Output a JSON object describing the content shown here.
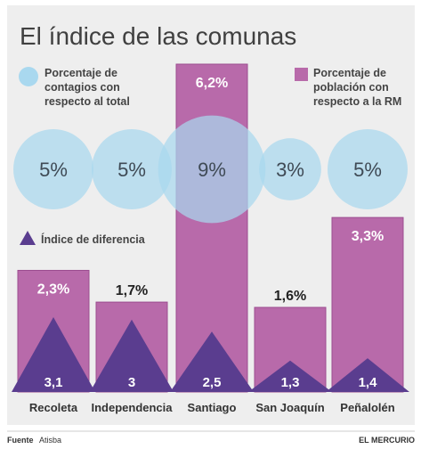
{
  "chart_data": {
    "type": "bar",
    "title": "El índice de las comunas",
    "categories": [
      "Recoleta",
      "Independencia",
      "Santiago",
      "San Joaquín",
      "Peñalolén"
    ],
    "series": [
      {
        "name": "Porcentaje de población con respecto a la RM",
        "kind": "bar",
        "values": [
          2.3,
          1.7,
          6.2,
          1.6,
          3.3
        ],
        "labels": [
          "2,3%",
          "1,7%",
          "6,2%",
          "1,6%",
          "3,3%"
        ],
        "color": "#b86aaa"
      },
      {
        "name": "Porcentaje de contagios con respecto al total",
        "kind": "circle",
        "values": [
          5,
          5,
          9,
          3,
          5
        ],
        "labels": [
          "5%",
          "5%",
          "9%",
          "3%",
          "5%"
        ],
        "color": "#a9d8ef"
      },
      {
        "name": "Índice de diferencia",
        "kind": "triangle",
        "values": [
          3.1,
          3,
          2.5,
          1.3,
          1.4
        ],
        "labels": [
          "3,1",
          "3",
          "2,5",
          "1,3",
          "1,4"
        ],
        "color": "#5a3d8f"
      }
    ],
    "legend": [
      {
        "text": "Porcentaje de contagios con respecto al total",
        "lines": [
          "Porcentaje de",
          "contagios con",
          "respecto al total"
        ],
        "marker": "circle",
        "position": "top-left"
      },
      {
        "text": "Porcentaje de población con respecto a la RM",
        "lines": [
          "Porcentaje de",
          "población con",
          "respecto a la RM"
        ],
        "marker": "square",
        "position": "top-right"
      },
      {
        "text": "Índice de diferencia",
        "lines": [
          "Índice de diferencia"
        ],
        "marker": "triangle",
        "position": "middle-left"
      }
    ]
  },
  "footer": {
    "source_label": "Fuente",
    "source_value": "Atisba",
    "publisher": "EL MERCURIO"
  }
}
